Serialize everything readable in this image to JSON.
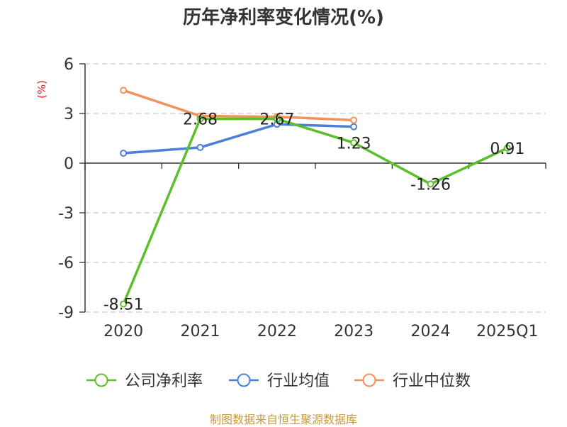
{
  "chart_data": {
    "type": "line",
    "title": "历年净利率变化情况(%)",
    "ylabel": "(%)",
    "xlabel": "",
    "categories": [
      "2020",
      "2021",
      "2022",
      "2023",
      "2024",
      "2025Q1"
    ],
    "ylim": [
      -9,
      6
    ],
    "yticks": [
      6,
      3,
      0,
      -3,
      -6,
      -9
    ],
    "ytick_labels": [
      "6",
      "3",
      "0",
      "-3",
      "-6",
      "-9"
    ],
    "grid": true,
    "legend_position": "bottom",
    "series": [
      {
        "name": "公司净利率",
        "color": "#5cbf2a",
        "values": [
          -8.51,
          2.68,
          2.67,
          1.23,
          -1.26,
          0.91
        ],
        "labels": [
          "-8.51",
          "2.68",
          "2.67",
          "1.23",
          "-1.26",
          "0.91"
        ]
      },
      {
        "name": "行业均值",
        "color": "#4a7fdc",
        "values": [
          0.6,
          0.95,
          2.35,
          2.2,
          null,
          null
        ]
      },
      {
        "name": "行业中位数",
        "color": "#f4905a",
        "values": [
          4.4,
          2.85,
          2.8,
          2.6,
          null,
          null
        ]
      }
    ]
  },
  "footer": {
    "source": "制图数据来自恒生聚源数据库"
  }
}
